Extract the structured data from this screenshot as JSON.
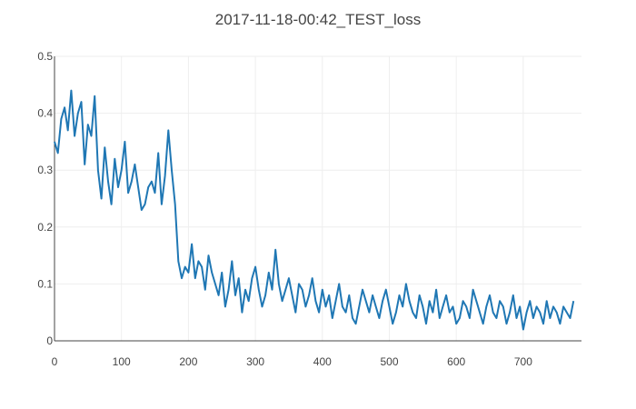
{
  "chart_data": {
    "type": "line",
    "title": "2017-11-18-00:42_TEST_loss",
    "xlabel": "",
    "ylabel": "",
    "xlim": [
      0,
      787
    ],
    "ylim": [
      0,
      0.5
    ],
    "x_ticks": [
      0,
      100,
      200,
      300,
      400,
      500,
      600,
      700
    ],
    "y_ticks": [
      0,
      0.1,
      0.2,
      0.3,
      0.4,
      0.5
    ],
    "grid": true,
    "legend": "none",
    "line_color": "#1f77b4",
    "x_start": 0,
    "x_step": 5,
    "series": [
      {
        "values": [
          0.35,
          0.33,
          0.39,
          0.41,
          0.37,
          0.44,
          0.36,
          0.4,
          0.42,
          0.31,
          0.38,
          0.36,
          0.43,
          0.3,
          0.25,
          0.34,
          0.28,
          0.24,
          0.32,
          0.27,
          0.3,
          0.35,
          0.26,
          0.28,
          0.31,
          0.27,
          0.23,
          0.24,
          0.27,
          0.28,
          0.26,
          0.33,
          0.24,
          0.29,
          0.37,
          0.3,
          0.24,
          0.14,
          0.11,
          0.13,
          0.12,
          0.17,
          0.11,
          0.14,
          0.13,
          0.09,
          0.15,
          0.12,
          0.1,
          0.08,
          0.12,
          0.06,
          0.09,
          0.14,
          0.08,
          0.11,
          0.05,
          0.09,
          0.07,
          0.11,
          0.13,
          0.09,
          0.06,
          0.08,
          0.12,
          0.09,
          0.16,
          0.1,
          0.07,
          0.09,
          0.11,
          0.08,
          0.05,
          0.1,
          0.09,
          0.06,
          0.08,
          0.11,
          0.07,
          0.05,
          0.09,
          0.06,
          0.08,
          0.04,
          0.07,
          0.1,
          0.06,
          0.05,
          0.08,
          0.04,
          0.03,
          0.06,
          0.09,
          0.07,
          0.05,
          0.08,
          0.06,
          0.04,
          0.07,
          0.09,
          0.06,
          0.03,
          0.05,
          0.08,
          0.06,
          0.1,
          0.07,
          0.05,
          0.04,
          0.08,
          0.06,
          0.03,
          0.07,
          0.05,
          0.09,
          0.04,
          0.06,
          0.08,
          0.05,
          0.06,
          0.03,
          0.04,
          0.07,
          0.06,
          0.04,
          0.09,
          0.07,
          0.05,
          0.03,
          0.06,
          0.08,
          0.05,
          0.04,
          0.07,
          0.06,
          0.03,
          0.05,
          0.08,
          0.04,
          0.06,
          0.02,
          0.05,
          0.07,
          0.04,
          0.06,
          0.05,
          0.03,
          0.07,
          0.04,
          0.06,
          0.05,
          0.03,
          0.06,
          0.05,
          0.04,
          0.07
        ]
      }
    ]
  }
}
